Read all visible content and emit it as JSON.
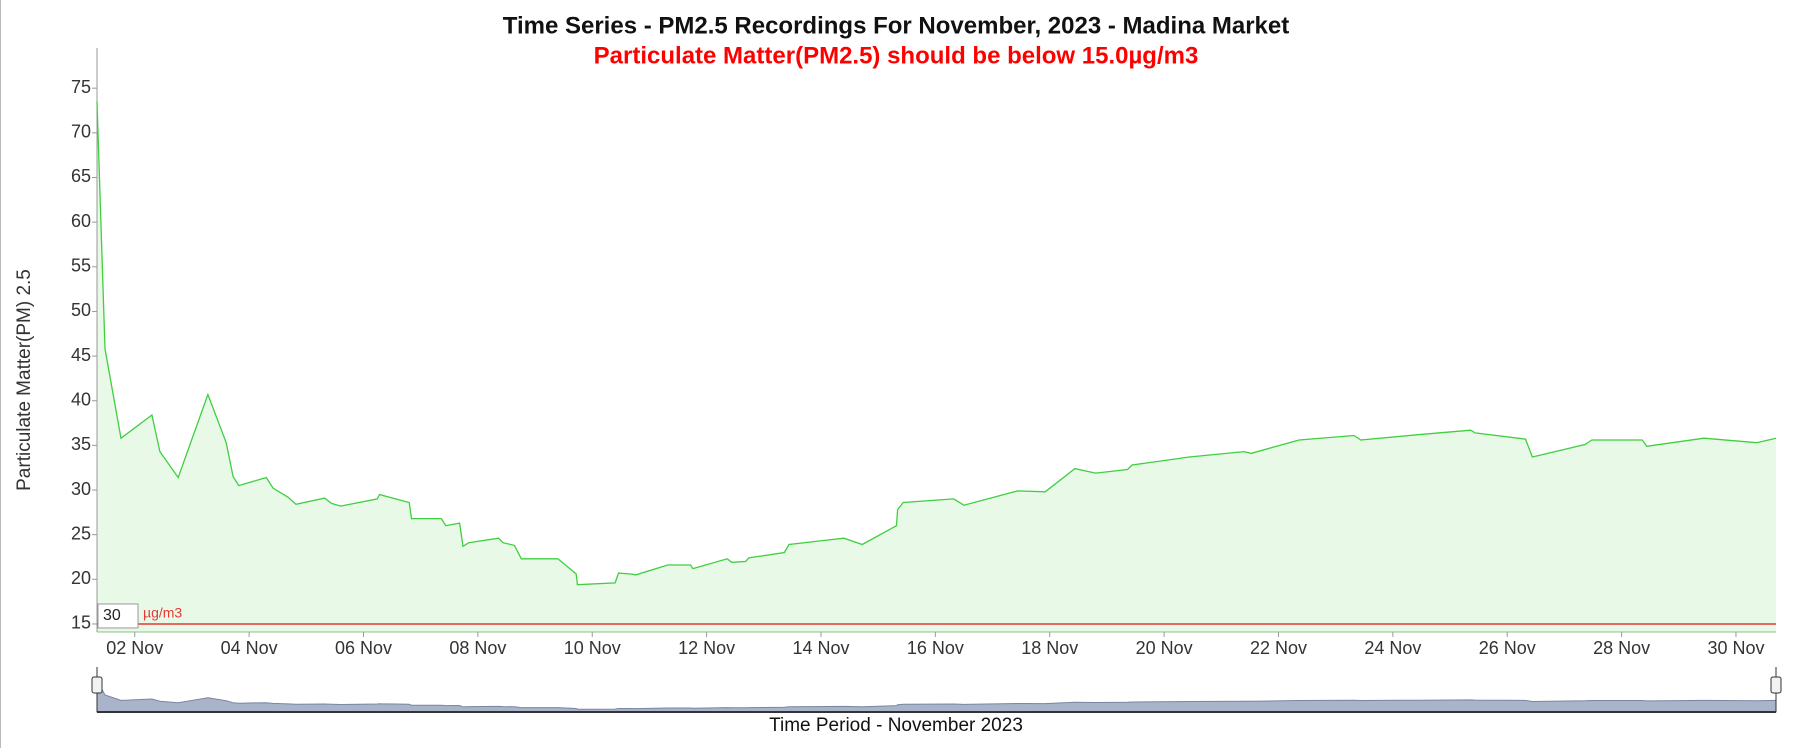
{
  "chart_data": {
    "type": "area",
    "title": "Time Series - PM2.5 Recordings For November, 2023 - Madina Market",
    "subtitle": "Particulate Matter(PM2.5) should be below 15.0µg/m3",
    "y_label": "Particulate Matter(PM) 2.5",
    "x_label": "Time Period - November 2023",
    "input_value": "30",
    "input_unit": "µg/m3",
    "threshold": {
      "value": 15,
      "color": "#e53935"
    },
    "xlim": [
      1.34,
      30.7
    ],
    "ylim": [
      14.1,
      79.5
    ],
    "xticks": [
      {
        "value": 2,
        "label": "02 Nov"
      },
      {
        "value": 4,
        "label": "04 Nov"
      },
      {
        "value": 6,
        "label": "06 Nov"
      },
      {
        "value": 8,
        "label": "08 Nov"
      },
      {
        "value": 10,
        "label": "10 Nov"
      },
      {
        "value": 12,
        "label": "12 Nov"
      },
      {
        "value": 14,
        "label": "14 Nov"
      },
      {
        "value": 16,
        "label": "16 Nov"
      },
      {
        "value": 18,
        "label": "18 Nov"
      },
      {
        "value": 20,
        "label": "20 Nov"
      },
      {
        "value": 22,
        "label": "22 Nov"
      },
      {
        "value": 24,
        "label": "24 Nov"
      },
      {
        "value": 26,
        "label": "26 Nov"
      },
      {
        "value": 28,
        "label": "28 Nov"
      },
      {
        "value": 30,
        "label": "30 Nov"
      }
    ],
    "yticks": [
      15,
      20,
      25,
      30,
      35,
      40,
      45,
      50,
      55,
      60,
      65,
      70,
      75
    ],
    "series": [
      {
        "color": "#3fcf3f",
        "x": [
          1.34,
          1.48,
          1.76,
          2.3,
          2.44,
          2.76,
          3.28,
          3.6,
          3.72,
          3.82,
          4.3,
          4.42,
          4.68,
          4.82,
          5.32,
          5.44,
          5.6,
          6.24,
          6.28,
          6.56,
          6.8,
          6.84,
          7.36,
          7.44,
          7.68,
          7.74,
          7.84,
          8.36,
          8.44,
          8.64,
          8.76,
          9.4,
          9.72,
          9.74,
          10.4,
          10.46,
          10.68,
          10.76,
          11.32,
          11.72,
          11.76,
          12.36,
          12.44,
          12.68,
          12.74,
          13.36,
          13.44,
          14.12,
          14.4,
          14.72,
          15.32,
          15.34,
          15.44,
          16.32,
          16.5,
          17.44,
          17.92,
          18.44,
          18.8,
          19.36,
          19.44,
          20.44,
          21.4,
          21.52,
          22.36,
          23.32,
          23.44,
          24.44,
          25.36,
          25.44,
          26.32,
          26.44,
          27.36,
          27.48,
          28.36,
          28.44,
          29.44,
          30.36,
          30.7
        ],
        "values": [
          73.5,
          45.8,
          35.8,
          38.4,
          34.3,
          31.4,
          40.7,
          35.3,
          31.5,
          30.5,
          31.4,
          30.2,
          29.2,
          28.4,
          29.1,
          28.5,
          28.2,
          29.0,
          29.5,
          29.0,
          28.6,
          26.8,
          26.8,
          26.0,
          26.3,
          23.7,
          24.1,
          24.6,
          24.1,
          23.8,
          22.3,
          22.3,
          20.6,
          19.4,
          19.6,
          20.7,
          20.6,
          20.5,
          21.6,
          21.6,
          21.2,
          22.3,
          21.9,
          22.0,
          22.4,
          23.0,
          23.9,
          24.4,
          24.6,
          23.9,
          26.0,
          27.8,
          28.6,
          29.0,
          28.3,
          29.9,
          29.8,
          32.4,
          31.9,
          32.3,
          32.8,
          33.7,
          34.3,
          34.1,
          35.6,
          36.1,
          35.6,
          36.2,
          36.7,
          36.4,
          35.7,
          33.7,
          35.1,
          35.6,
          35.6,
          34.9,
          35.8,
          35.3,
          35.8
        ]
      }
    ]
  }
}
